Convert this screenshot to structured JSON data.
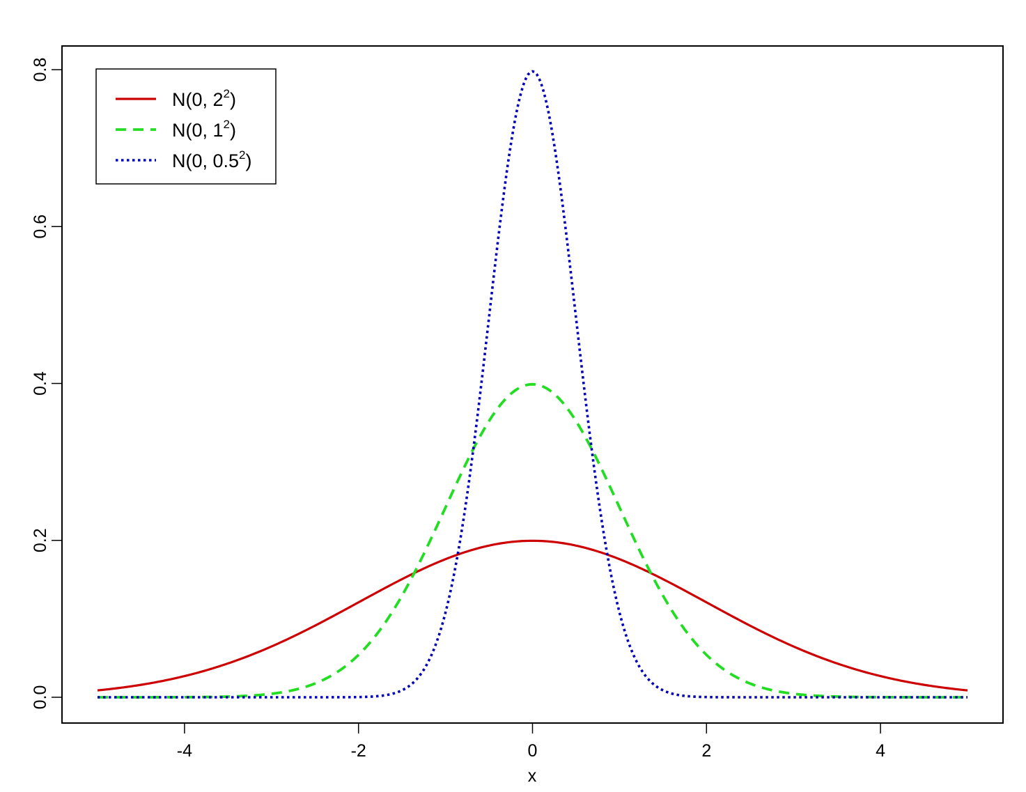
{
  "chart_data": {
    "type": "line",
    "title": "",
    "xlabel": "x",
    "ylabel": "",
    "xlim": [
      -5,
      5
    ],
    "ylim": [
      0,
      0.8
    ],
    "xticks": [
      -4,
      -2,
      0,
      2,
      4
    ],
    "xtick_labels": [
      "-4",
      "-2",
      "0",
      "2",
      "4"
    ],
    "yticks": [
      0.0,
      0.2,
      0.4,
      0.6,
      0.8
    ],
    "ytick_labels": [
      "0.0",
      "0.2",
      "0.4",
      "0.6",
      "0.8"
    ],
    "grid": false,
    "legend_position": "top-left",
    "series": [
      {
        "name": "N(0, 2^2)",
        "label_base": "N(0, 2",
        "label_sup": "2",
        "label_end": ")",
        "color": "#cc0000",
        "line_style": "solid",
        "mean": 0,
        "sd": 2,
        "x": [
          -5,
          -4,
          -3,
          -2,
          -1,
          0,
          1,
          2,
          3,
          4,
          5
        ],
        "y": [
          0.0088,
          0.027,
          0.0648,
          0.121,
          0.176,
          0.1995,
          0.176,
          0.121,
          0.0648,
          0.027,
          0.0088
        ]
      },
      {
        "name": "N(0, 1^2)",
        "label_base": "N(0, 1",
        "label_sup": "2",
        "label_end": ")",
        "color": "#22dd22",
        "line_style": "dashed",
        "mean": 0,
        "sd": 1,
        "x": [
          -5,
          -4,
          -3,
          -2,
          -1,
          0,
          1,
          2,
          3,
          4,
          5
        ],
        "y": [
          0.0,
          0.0001,
          0.0044,
          0.054,
          0.242,
          0.3989,
          0.242,
          0.054,
          0.0044,
          0.0001,
          0.0
        ]
      },
      {
        "name": "N(0, 0.5^2)",
        "label_base": "N(0, 0.5",
        "label_sup": "2",
        "label_end": ")",
        "color": "#0000bb",
        "line_style": "dotted",
        "mean": 0,
        "sd": 0.5,
        "x": [
          -5,
          -4,
          -3,
          -2,
          -1,
          0,
          1,
          2,
          3,
          4,
          5
        ],
        "y": [
          0.0,
          0.0,
          0.0,
          0.0003,
          0.108,
          0.7979,
          0.108,
          0.0003,
          0.0,
          0.0,
          0.0
        ]
      }
    ]
  }
}
